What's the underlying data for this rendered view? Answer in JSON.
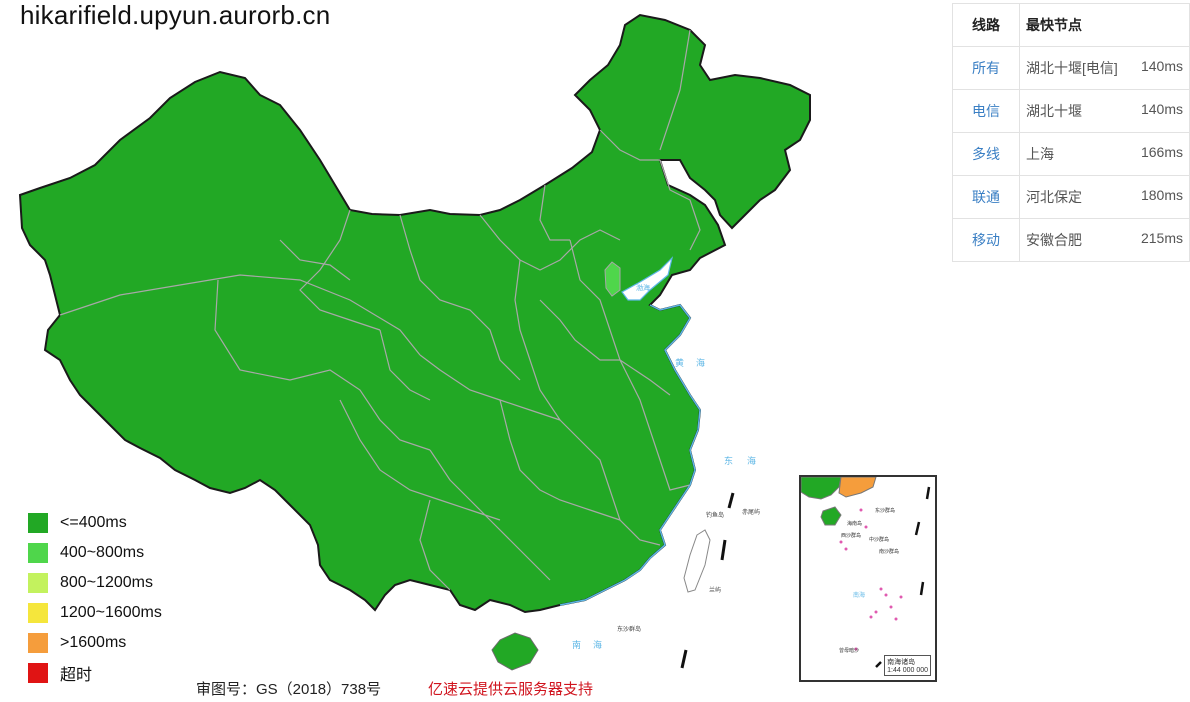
{
  "page": {
    "title": "hikarifield.upyun.aurorb.cn"
  },
  "colors": {
    "fast": "#22a825",
    "mid": "#4fd64b",
    "slow": "#c3f25e",
    "slower": "#f5e63c",
    "slowest": "#f59d3c",
    "timeout": "#e01414",
    "sea": "#5eb7e6",
    "border": "#9a9a9a"
  },
  "legend": [
    {
      "label": "<=400ms",
      "color": "#22a825"
    },
    {
      "label": "400~800ms",
      "color": "#4fd64b"
    },
    {
      "label": "800~1200ms",
      "color": "#c3f25e"
    },
    {
      "label": "1200~1600ms",
      "color": "#f5e63c"
    },
    {
      "label": ">1600ms",
      "color": "#f59d3c"
    },
    {
      "label": "超时",
      "color": "#e01414"
    }
  ],
  "table": {
    "headers": [
      "线路",
      "最快节点"
    ],
    "rows": [
      {
        "line": "所有",
        "node": "湖北十堰[电信]",
        "time": "140ms"
      },
      {
        "line": "电信",
        "node": "湖北十堰",
        "time": "140ms"
      },
      {
        "line": "多线",
        "node": "上海",
        "time": "166ms"
      },
      {
        "line": "联通",
        "node": "河北保定",
        "time": "180ms"
      },
      {
        "line": "移动",
        "node": "安徽合肥",
        "time": "215ms"
      }
    ]
  },
  "map": {
    "sea_labels": [
      "渤海",
      "黄海",
      "东海",
      "南海"
    ],
    "island_labels": [
      "钓鱼岛",
      "赤尾屿",
      "东沙群岛",
      "兰屿"
    ],
    "inset_island_labels": [
      "海南岛",
      "东沙群岛",
      "西沙群岛",
      "中沙群岛",
      "南沙群岛",
      "曾母暗沙"
    ],
    "inset_title": "南海诸岛",
    "inset_scale": "1:44 000 000"
  },
  "footer": {
    "approval": "审图号：GS（2018）738号",
    "sponsor": "亿速云提供云服务器支持"
  }
}
